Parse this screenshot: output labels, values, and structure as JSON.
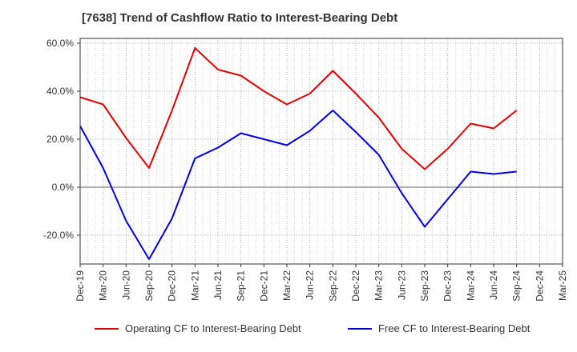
{
  "chart_data": {
    "type": "line",
    "title": "[7638]  Trend of Cashflow Ratio to Interest-Bearing Debt",
    "xlabel": "",
    "ylabel": "",
    "x": [
      "Dec-19",
      "Mar-20",
      "Jun-20",
      "Sep-20",
      "Dec-20",
      "Mar-21",
      "Jun-21",
      "Sep-21",
      "Dec-21",
      "Mar-22",
      "Jun-22",
      "Sep-22",
      "Dec-22",
      "Mar-23",
      "Jun-23",
      "Sep-23",
      "Dec-23",
      "Mar-24",
      "Jun-24",
      "Sep-24",
      "Dec-24",
      "Mar-25"
    ],
    "ylim": [
      -32,
      62
    ],
    "yticks": [
      -20,
      0,
      20,
      40,
      60
    ],
    "ytick_labels": [
      "-20.0%",
      "0.0%",
      "20.0%",
      "40.0%",
      "60.0%"
    ],
    "grid": true,
    "legend_position": "bottom",
    "series": [
      {
        "name": "Operating CF to Interest-Bearing Debt",
        "color": "#e00000",
        "values": [
          37.5,
          34.5,
          20.5,
          8.0,
          32.0,
          58.0,
          49.0,
          46.5,
          40.0,
          34.5,
          39.0,
          48.5,
          39.0,
          29.0,
          16.0,
          7.5,
          16.0,
          26.5,
          24.5,
          32.0,
          null,
          null
        ]
      },
      {
        "name": "Free CF to Interest-Bearing Debt",
        "color": "#0000e0",
        "values": [
          25.5,
          8.0,
          -14.0,
          -30.0,
          -13.0,
          12.0,
          16.5,
          22.5,
          20.0,
          17.5,
          23.5,
          32.0,
          23.0,
          13.5,
          -2.5,
          -16.5,
          -5.0,
          6.5,
          5.5,
          6.5,
          null,
          null
        ]
      }
    ]
  }
}
